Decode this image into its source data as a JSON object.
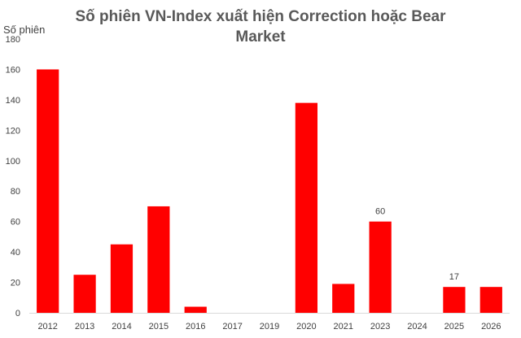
{
  "chart_data": {
    "type": "bar",
    "title": "Số phiên VN-Index xuất hiện Correction hoặc Bear Market",
    "ylabel": "Số phiên",
    "xlabel": "",
    "categories": [
      "2012",
      "2013",
      "2014",
      "2015",
      "2016",
      "2017",
      "2019",
      "2020",
      "2021",
      "2023",
      "2024",
      "2025",
      "2026"
    ],
    "values": [
      160,
      25,
      45,
      70,
      4,
      0,
      0,
      138,
      19,
      60,
      0,
      17,
      17
    ],
    "data_labels": {
      "2023": "60",
      "2025": "17"
    },
    "ylim": [
      0,
      180
    ],
    "yticks": [
      0,
      20,
      40,
      60,
      80,
      100,
      120,
      140,
      160,
      180
    ],
    "grid": false,
    "bar_color": "#ff0000"
  }
}
